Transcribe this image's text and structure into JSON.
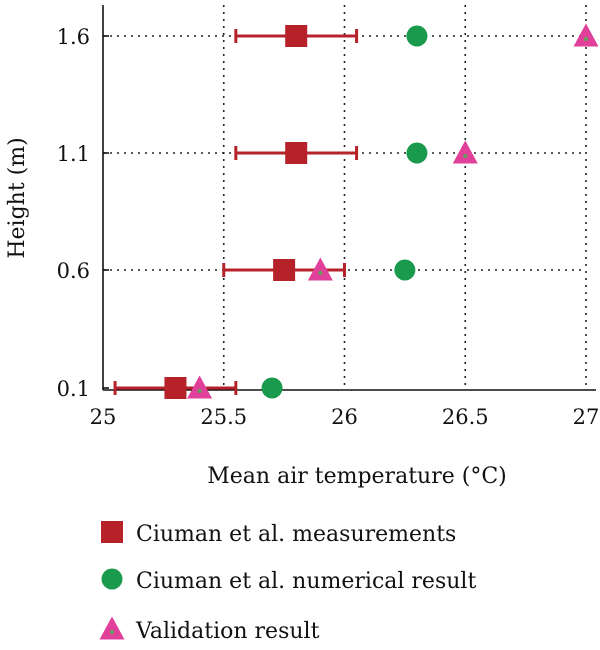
{
  "chart_data": {
    "type": "scatter",
    "title": "",
    "xlabel": "Mean air temperature (°C)",
    "ylabel": "Height (m)",
    "xlim": [
      25,
      27
    ],
    "x_ticks": [
      "25",
      "25.5",
      "26",
      "26.5",
      "27"
    ],
    "y_categories": [
      "0.1",
      "0.6",
      "1.1",
      "1.6"
    ],
    "grid": true,
    "legend_position": "bottom",
    "series": [
      {
        "name": "Ciuman et al. measurements",
        "marker": "square",
        "color": "#b5222a",
        "points": [
          {
            "y": "0.1",
            "x": 25.3,
            "x_err_low": 25.05,
            "x_err_high": 25.55
          },
          {
            "y": "0.6",
            "x": 25.75,
            "x_err_low": 25.5,
            "x_err_high": 26.0
          },
          {
            "y": "1.1",
            "x": 25.8,
            "x_err_low": 25.55,
            "x_err_high": 26.05
          },
          {
            "y": "1.6",
            "x": 25.8,
            "x_err_low": 25.55,
            "x_err_high": 26.05
          }
        ]
      },
      {
        "name": "Ciuman et al. numerical result",
        "marker": "circle",
        "color": "#1a9a4c",
        "points": [
          {
            "y": "0.1",
            "x": 25.7
          },
          {
            "y": "0.6",
            "x": 26.25
          },
          {
            "y": "1.1",
            "x": 26.3
          },
          {
            "y": "1.6",
            "x": 26.3
          }
        ]
      },
      {
        "name": "Validation result",
        "marker": "triangle",
        "color": "#e0409a",
        "inner_color": "#5fa05a",
        "points": [
          {
            "y": "0.1",
            "x": 25.4
          },
          {
            "y": "0.6",
            "x": 25.9
          },
          {
            "y": "1.1",
            "x": 26.5
          },
          {
            "y": "1.6",
            "x": 27.0
          }
        ]
      }
    ]
  }
}
